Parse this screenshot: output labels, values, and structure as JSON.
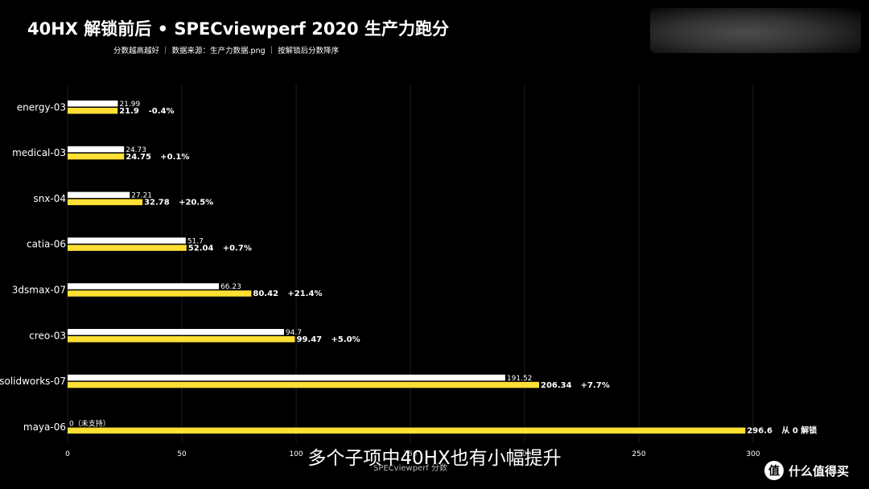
{
  "title": "40HX 解锁前后 • SPECviewperf 2020 生产力跑分",
  "subtitle": "分数越高越好 ｜ 数据来源：生产力数据.png ｜ 按解锁后分数降序",
  "caption": "多个子项中40HX也有小幅提升",
  "watermark": {
    "icon": "值",
    "text": "什么值得买"
  },
  "colors": {
    "background": "#000000",
    "before": "#ffffff",
    "after": "#ffe033",
    "text": "#ffffff",
    "grid": "#1e1e1e"
  },
  "chart_data": {
    "type": "bar",
    "orientation": "horizontal",
    "categories": [
      "energy-03",
      "medical-03",
      "snx-04",
      "catia-06",
      "3dsmax-07",
      "creo-03",
      "solidworks-07",
      "maya-06"
    ],
    "series": [
      {
        "values": [
          21.99,
          24.73,
          27.21,
          51.7,
          66.23,
          94.7,
          191.52,
          0
        ],
        "labels": [
          "21.99",
          "24.73",
          "27.21",
          "51.7",
          "66.23",
          "94.7",
          "191.52",
          "0（未支持）"
        ]
      },
      {
        "values": [
          21.9,
          24.75,
          32.78,
          52.04,
          80.42,
          99.47,
          206.34,
          296.6
        ],
        "labels": [
          "21.9",
          "24.75",
          "32.78",
          "52.04",
          "80.42",
          "99.47",
          "206.34",
          "296.6"
        ]
      }
    ],
    "change_labels": [
      "-0.4%",
      "+0.1%",
      "+20.5%",
      "+0.7%",
      "+21.4%",
      "+5.0%",
      "+7.7%",
      "从 0 解锁"
    ],
    "xlabel": "SPECviewperf 分数",
    "xlim": [
      0,
      300
    ],
    "xticks": [
      0,
      50,
      100,
      150,
      200,
      250,
      300
    ],
    "grid": true,
    "legend": "none"
  }
}
